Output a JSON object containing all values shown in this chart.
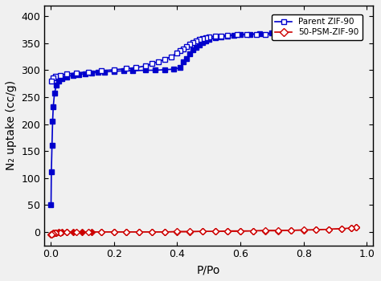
{
  "title": "",
  "xlabel": "P/Po",
  "ylabel": "N₂ uptake (cc/g)",
  "xlim": [
    -0.02,
    1.02
  ],
  "ylim": [
    -25,
    420
  ],
  "yticks": [
    0,
    50,
    100,
    150,
    200,
    250,
    300,
    350,
    400
  ],
  "xticks": [
    0.0,
    0.2,
    0.4,
    0.6,
    0.8,
    1.0
  ],
  "blue_color": "#0000CC",
  "red_color": "#CC0000",
  "legend1": "Parent ZIF-90",
  "legend2": "50-PSM-ZIF-90",
  "zif90_adsorption_x": [
    0.001,
    0.002,
    0.004,
    0.006,
    0.008,
    0.012,
    0.018,
    0.025,
    0.035,
    0.05,
    0.07,
    0.09,
    0.11,
    0.13,
    0.15,
    0.17,
    0.2,
    0.23,
    0.26,
    0.3,
    0.33,
    0.36,
    0.39,
    0.41,
    0.42,
    0.43,
    0.44,
    0.45,
    0.46,
    0.47,
    0.48,
    0.49,
    0.5,
    0.52,
    0.54,
    0.56,
    0.58,
    0.6,
    0.63,
    0.66,
    0.7,
    0.74,
    0.78,
    0.82,
    0.86,
    0.9,
    0.94,
    0.97
  ],
  "zif90_adsorption_y": [
    50,
    112,
    160,
    205,
    232,
    258,
    272,
    280,
    285,
    288,
    291,
    292,
    294,
    295,
    296,
    297,
    298,
    299,
    299,
    300,
    300,
    301,
    302,
    305,
    315,
    322,
    330,
    338,
    343,
    347,
    351,
    354,
    357,
    360,
    362,
    364,
    365,
    366,
    367,
    368,
    369,
    370,
    371,
    372,
    373,
    374,
    375,
    376
  ],
  "zif90_desorption_x": [
    0.97,
    0.95,
    0.92,
    0.89,
    0.86,
    0.83,
    0.8,
    0.77,
    0.74,
    0.71,
    0.68,
    0.65,
    0.62,
    0.59,
    0.56,
    0.54,
    0.52,
    0.5,
    0.49,
    0.48,
    0.47,
    0.46,
    0.45,
    0.44,
    0.43,
    0.42,
    0.41,
    0.4,
    0.38,
    0.36,
    0.34,
    0.32,
    0.3,
    0.27,
    0.24,
    0.2,
    0.16,
    0.12,
    0.08,
    0.05,
    0.03,
    0.015,
    0.008,
    0.003
  ],
  "zif90_desorption_y": [
    376,
    375,
    374,
    373,
    372,
    371,
    370,
    369,
    368,
    368,
    367,
    367,
    366,
    366,
    365,
    364,
    363,
    362,
    361,
    359,
    357,
    354,
    351,
    348,
    344,
    340,
    336,
    332,
    325,
    320,
    316,
    312,
    308,
    305,
    303,
    301,
    299,
    297,
    295,
    293,
    291,
    289,
    286,
    280
  ],
  "psm_adsorption_x": [
    0.001,
    0.003,
    0.005,
    0.008,
    0.012,
    0.018,
    0.025,
    0.035,
    0.05,
    0.07,
    0.1,
    0.13,
    0.16,
    0.2,
    0.24,
    0.28,
    0.32,
    0.36,
    0.4,
    0.44,
    0.48,
    0.52,
    0.56,
    0.6,
    0.64,
    0.68,
    0.72,
    0.76,
    0.8,
    0.84,
    0.88,
    0.92,
    0.95,
    0.965
  ],
  "psm_adsorption_y": [
    -5,
    -4,
    -3,
    -2,
    -1,
    -1,
    0,
    0,
    0,
    0,
    0,
    0,
    0,
    0,
    0,
    0,
    0,
    0,
    0,
    0,
    1,
    1,
    1,
    1,
    2,
    2,
    2,
    3,
    3,
    4,
    5,
    6,
    7,
    8
  ],
  "psm_desorption_x": [
    0.965,
    0.95,
    0.92,
    0.88,
    0.84,
    0.8,
    0.76,
    0.72,
    0.68,
    0.64,
    0.6,
    0.56,
    0.52,
    0.48,
    0.44,
    0.4,
    0.36,
    0.32,
    0.28,
    0.24,
    0.2,
    0.16,
    0.12,
    0.08,
    0.05,
    0.03,
    0.015,
    0.008,
    0.003
  ],
  "psm_desorption_y": [
    8,
    7,
    6,
    5,
    4,
    4,
    3,
    3,
    3,
    2,
    2,
    2,
    1,
    1,
    1,
    1,
    0,
    0,
    0,
    0,
    0,
    0,
    0,
    0,
    0,
    -1,
    -2,
    -3,
    -4
  ],
  "bg_color": "#f0f0f0"
}
